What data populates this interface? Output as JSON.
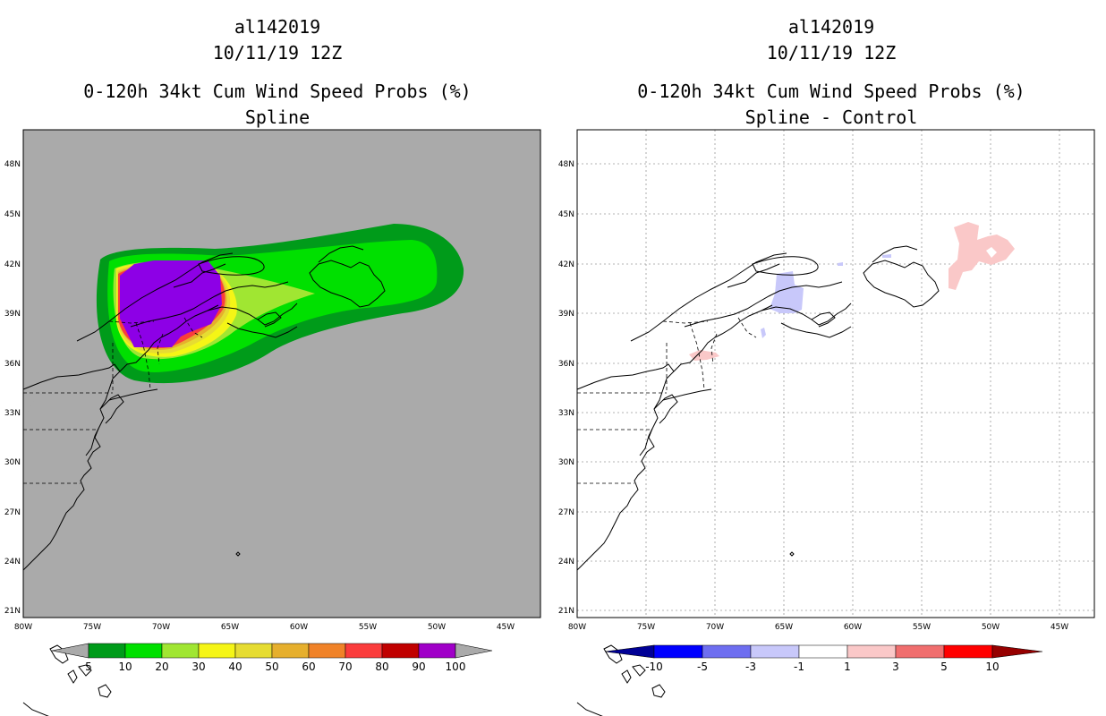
{
  "left_panel": {
    "storm_id": "al142019",
    "datetime": "10/11/19 12Z",
    "title": "0-120h 34kt Cum Wind Speed Probs (%)",
    "subtitle": "Spline",
    "colorbar": {
      "labels": [
        "5",
        "10",
        "20",
        "30",
        "40",
        "50",
        "60",
        "70",
        "80",
        "90",
        "100"
      ],
      "colors": [
        "#009b1a",
        "#00e000",
        "#a0e632",
        "#f5f516",
        "#e6dc32",
        "#e6af2d",
        "#f08228",
        "#fa3c3c",
        "#c00000",
        "#a000c8",
        "#8d00e6"
      ]
    }
  },
  "right_panel": {
    "storm_id": "al142019",
    "datetime": "10/11/19 12Z",
    "title": "0-120h 34kt Cum Wind Speed Probs (%)",
    "subtitle": "Spline - Control",
    "colorbar": {
      "labels": [
        "-10",
        "-5",
        "-3",
        "-1",
        "1",
        "3",
        "5",
        "10"
      ],
      "colors": [
        "#000096",
        "#0000ff",
        "#6e6ef0",
        "#c8c8fa",
        "#ffffff",
        "#fac8c8",
        "#f06e6e",
        "#ff0000",
        "#960000"
      ]
    }
  },
  "map_axes": {
    "lat_labels": [
      "48N",
      "45N",
      "42N",
      "39N",
      "36N",
      "33N",
      "30N",
      "27N",
      "24N",
      "21N"
    ],
    "lon_labels": [
      "80W",
      "75W",
      "70W",
      "65W",
      "60W",
      "55W",
      "50W",
      "45W"
    ]
  }
}
